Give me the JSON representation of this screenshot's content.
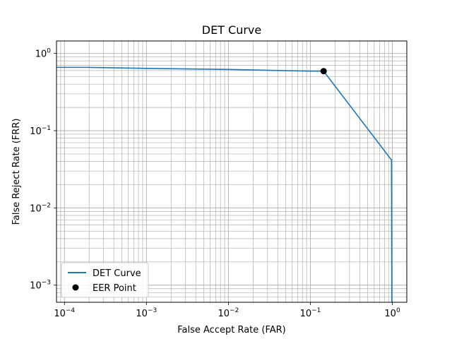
{
  "chart_data": {
    "type": "line",
    "title": "DET Curve",
    "xlabel": "False Accept Rate (FAR)",
    "ylabel": "False Reject Rate (FRR)",
    "xscale": "log",
    "yscale": "log",
    "xlim": [
      8e-05,
      1.5
    ],
    "ylim": [
      0.0006,
      1.45
    ],
    "grid": "major and minor",
    "legend_position": "lower-left",
    "x_ticks": [
      {
        "base": "10",
        "exp": "−4"
      },
      {
        "base": "10",
        "exp": "−3"
      },
      {
        "base": "10",
        "exp": "−2"
      },
      {
        "base": "10",
        "exp": "−1"
      },
      {
        "base": "10",
        "exp": "0"
      }
    ],
    "y_ticks": [
      {
        "base": "10",
        "exp": "−3"
      },
      {
        "base": "10",
        "exp": "−2"
      },
      {
        "base": "10",
        "exp": "−1"
      },
      {
        "base": "10",
        "exp": "0"
      }
    ],
    "series": [
      {
        "name": "DET Curve",
        "color": "#1f77b4",
        "x": [
          8e-05,
          0.0002,
          0.001,
          0.01,
          0.1,
          0.145,
          0.97,
          0.975,
          0.985
        ],
        "y": [
          0.66,
          0.66,
          0.64,
          0.62,
          0.59,
          0.59,
          0.042,
          0.042,
          0.0005
        ]
      }
    ],
    "points": [
      {
        "name": "EER Point",
        "color": "#000000",
        "x": 0.145,
        "y": 0.59
      }
    ]
  }
}
